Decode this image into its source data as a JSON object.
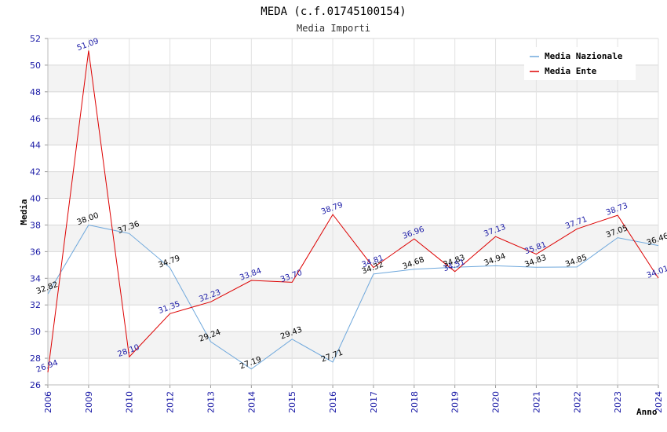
{
  "chart_data": {
    "type": "line",
    "title": "MEDA (c.f.01745100154)",
    "subtitle": "Media Importi",
    "xlabel": "Anno",
    "ylabel": "Media",
    "ylim": [
      26,
      52
    ],
    "yticks": [
      26,
      28,
      30,
      32,
      34,
      36,
      38,
      40,
      42,
      44,
      46,
      48,
      50,
      52
    ],
    "categories": [
      "2006",
      "2009",
      "2010",
      "2012",
      "2013",
      "2014",
      "2015",
      "2016",
      "2017",
      "2018",
      "2019",
      "2020",
      "2021",
      "2022",
      "2023",
      "2024"
    ],
    "series": [
      {
        "name": "Media Nazionale",
        "color": "#6fa8dc",
        "label_color": "#000000",
        "values": [
          32.82,
          38.0,
          37.36,
          34.79,
          29.24,
          27.19,
          29.43,
          27.71,
          34.32,
          34.68,
          34.83,
          34.94,
          34.83,
          34.85,
          37.05,
          36.46
        ],
        "labels": [
          "32.82",
          "38.00",
          "37.36",
          "34.79",
          "29.24",
          "27.19",
          "29.43",
          "27.71",
          "34.32",
          "34.68",
          "34.83",
          "34.94",
          "34.83",
          "34.85",
          "37.05",
          "36.46"
        ]
      },
      {
        "name": "Media Ente",
        "color": "#dd0000",
        "label_color": "#1a1aa6",
        "values": [
          26.94,
          51.09,
          28.1,
          31.35,
          32.23,
          33.84,
          33.7,
          38.79,
          34.81,
          36.96,
          34.51,
          37.13,
          35.81,
          37.71,
          38.73,
          34.01
        ],
        "labels": [
          "26.94",
          "51.09",
          "28.10",
          "31.35",
          "32.23",
          "33.84",
          "33.70",
          "38.79",
          "34.81",
          "36.96",
          "34.51",
          "37.13",
          "35.81",
          "37.71",
          "38.73",
          "34.01"
        ]
      }
    ],
    "legend": "top-right",
    "grid": true
  }
}
